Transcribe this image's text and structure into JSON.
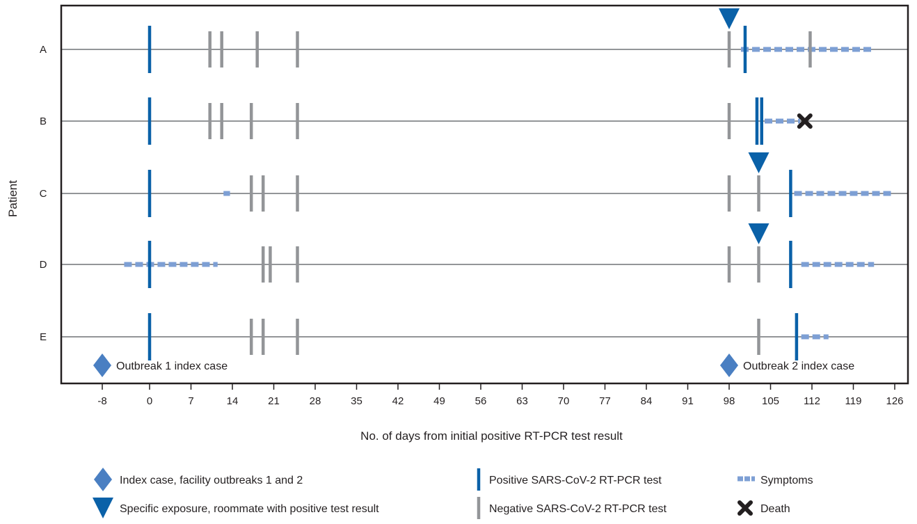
{
  "chart_data": {
    "type": "timeline",
    "xlabel": "No. of days from initial positive RT-PCR test result",
    "ylabel": "Patient",
    "xlim": [
      -12,
      128
    ],
    "x_ticks": [
      -8,
      0,
      7,
      14,
      21,
      28,
      35,
      42,
      49,
      56,
      63,
      70,
      77,
      84,
      91,
      98,
      105,
      112,
      119,
      126
    ],
    "patients": [
      {
        "label": "A",
        "positive_tests": [
          0,
          100.7
        ],
        "negative_tests": [
          10.2,
          12.2,
          18.2,
          25,
          98,
          111.7
        ],
        "symptoms": [
          [
            100,
            122.5
          ]
        ],
        "exposures": [
          98
        ],
        "death": null
      },
      {
        "label": "B",
        "positive_tests": [
          0,
          102.7,
          103.5
        ],
        "negative_tests": [
          10.2,
          12.2,
          17.2,
          25,
          98
        ],
        "symptoms": [
          [
            104,
            110
          ]
        ],
        "exposures": [],
        "death": 110.8
      },
      {
        "label": "C",
        "positive_tests": [
          0,
          108.4
        ],
        "negative_tests": [
          17.2,
          19.2,
          25,
          98,
          103
        ],
        "symptoms": [
          [
            12.5,
            13.6
          ],
          [
            109,
            125.7
          ]
        ],
        "exposures": [
          103
        ],
        "death": null
      },
      {
        "label": "D",
        "positive_tests": [
          0,
          108.4
        ],
        "negative_tests": [
          19.2,
          20.4,
          25,
          98,
          103
        ],
        "symptoms": [
          [
            -4.3,
            11.5
          ],
          [
            110.2,
            122.5
          ]
        ],
        "exposures": [
          103
        ],
        "death": null
      },
      {
        "label": "E",
        "positive_tests": [
          0,
          109.4
        ],
        "negative_tests": [
          17.2,
          19.2,
          25,
          103
        ],
        "symptoms": [
          [
            110.2,
            114.8
          ]
        ],
        "exposures": [],
        "death": null
      }
    ],
    "annotations": [
      {
        "label": "Outbreak 1 index case",
        "x": -8
      },
      {
        "label": "Outbreak 2 index case",
        "x": 98
      }
    ],
    "legend": [
      {
        "symbol": "diamond",
        "label": "Index case, facility outbreaks 1 and 2"
      },
      {
        "symbol": "triangle",
        "label": "Specific exposure, roommate with positive test result"
      },
      {
        "symbol": "positive",
        "label": "Positive SARS-CoV-2 RT-PCR test"
      },
      {
        "symbol": "negative",
        "label": "Negative SARS-CoV-2 RT-PCR test"
      },
      {
        "symbol": "symptoms",
        "label": "Symptoms"
      },
      {
        "symbol": "death",
        "label": "Death"
      }
    ],
    "colors": {
      "positive": "#0a61a8",
      "negative": "#939598",
      "symptoms": "#7d9fd4",
      "exposure": "#0a61a8",
      "diamond": "#4a7fc2",
      "death": "#231f20",
      "axis": "#231f20",
      "row_line": "#939598"
    }
  }
}
